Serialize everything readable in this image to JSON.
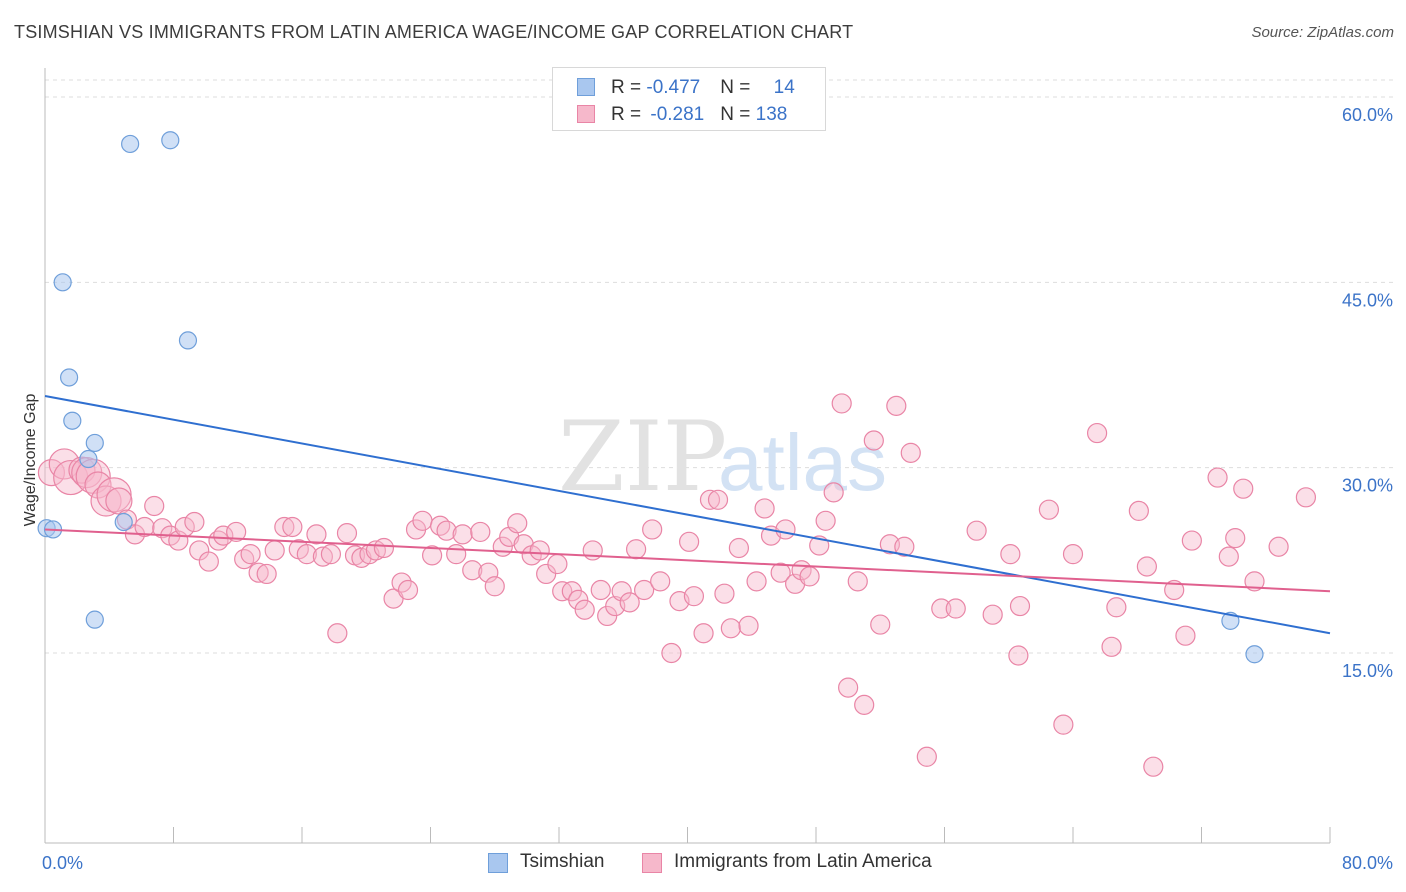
{
  "title": "TSIMSHIAN VS IMMIGRANTS FROM LATIN AMERICA WAGE/INCOME GAP CORRELATION CHART",
  "source": "Source: ZipAtlas.com",
  "legend_top": {
    "rows": [
      {
        "r_label": "R = ",
        "r_value": "-0.477",
        "n_label": "N = ",
        "n_value": "14"
      },
      {
        "r_label": "R = ",
        "r_value": "-0.281",
        "n_label": "N = ",
        "n_value": "138"
      }
    ]
  },
  "legend_bottom": {
    "series1": "Tsimshian",
    "series2": "Immigrants from Latin America"
  },
  "colors": {
    "blue_fill": "#a9c7ef",
    "blue_stroke": "#6f9fda",
    "blue_line": "#2f6fd0",
    "pink_fill": "#f6b8cb",
    "pink_stroke": "#e985a6",
    "pink_line": "#e0608e",
    "axis_text": "#3b73c8",
    "grid": "#dddddd"
  },
  "chart_data": {
    "type": "scatter",
    "title": "TSIMSHIAN VS IMMIGRANTS FROM LATIN AMERICA WAGE/INCOME GAP CORRELATION CHART",
    "xlabel": "",
    "ylabel": "Wage/Income Gap",
    "xlim": [
      0,
      80
    ],
    "ylim": [
      0,
      60
    ],
    "x_tick_labels": [
      "0.0%",
      "80.0%"
    ],
    "y_tick_labels": [
      "15.0%",
      "30.0%",
      "45.0%",
      "60.0%"
    ],
    "y_ticks": [
      15,
      30,
      45,
      60
    ],
    "grid": true,
    "legend_position": "top-center",
    "watermark": {
      "zip": "ZIP",
      "atlas": "atlas"
    },
    "series": [
      {
        "name": "Tsimshian",
        "color": "#a9c7ef",
        "R": -0.477,
        "N": 14,
        "trend": {
          "x": [
            0,
            80
          ],
          "y": [
            35.8,
            16.6
          ]
        },
        "points": [
          [
            0.1,
            25.1
          ],
          [
            0.5,
            25.0
          ],
          [
            1.1,
            45.0
          ],
          [
            1.5,
            37.3
          ],
          [
            1.7,
            33.8
          ],
          [
            2.7,
            30.7
          ],
          [
            3.1,
            32.0
          ],
          [
            3.1,
            17.7
          ],
          [
            4.9,
            25.6
          ],
          [
            5.3,
            56.2
          ],
          [
            7.8,
            56.5
          ],
          [
            8.9,
            40.3
          ],
          [
            73.8,
            17.6
          ],
          [
            75.3,
            14.9
          ]
        ]
      },
      {
        "name": "Immigrants from Latin America",
        "color": "#f6b8cb",
        "R": -0.281,
        "N": 138,
        "trend": {
          "x": [
            0,
            80
          ],
          "y": [
            25.0,
            20.0
          ]
        },
        "points": [
          [
            0.4,
            29.6
          ],
          [
            1.2,
            30.3
          ],
          [
            1.6,
            29.2
          ],
          [
            2.3,
            29.8
          ],
          [
            2.6,
            29.6
          ],
          [
            3.0,
            29.3
          ],
          [
            3.3,
            28.6
          ],
          [
            3.8,
            27.3
          ],
          [
            4.3,
            27.8
          ],
          [
            4.6,
            27.3
          ],
          [
            5.1,
            25.8
          ],
          [
            5.6,
            24.6
          ],
          [
            6.2,
            25.2
          ],
          [
            6.8,
            26.9
          ],
          [
            7.3,
            25.1
          ],
          [
            7.8,
            24.5
          ],
          [
            8.3,
            24.1
          ],
          [
            8.7,
            25.2
          ],
          [
            9.3,
            25.6
          ],
          [
            9.6,
            23.3
          ],
          [
            10.2,
            22.4
          ],
          [
            10.8,
            24.1
          ],
          [
            11.1,
            24.5
          ],
          [
            11.9,
            24.8
          ],
          [
            12.4,
            22.6
          ],
          [
            12.8,
            23.0
          ],
          [
            13.3,
            21.5
          ],
          [
            13.8,
            21.4
          ],
          [
            14.3,
            23.3
          ],
          [
            14.9,
            25.2
          ],
          [
            15.4,
            25.2
          ],
          [
            15.8,
            23.4
          ],
          [
            16.3,
            23.0
          ],
          [
            16.9,
            24.6
          ],
          [
            17.3,
            22.8
          ],
          [
            17.8,
            23.0
          ],
          [
            18.2,
            16.6
          ],
          [
            18.8,
            24.7
          ],
          [
            19.3,
            22.9
          ],
          [
            19.7,
            22.7
          ],
          [
            20.2,
            23.0
          ],
          [
            20.6,
            23.3
          ],
          [
            21.1,
            23.5
          ],
          [
            21.7,
            19.4
          ],
          [
            22.2,
            20.7
          ],
          [
            22.6,
            20.1
          ],
          [
            23.1,
            25.0
          ],
          [
            23.5,
            25.7
          ],
          [
            24.1,
            22.9
          ],
          [
            24.6,
            25.3
          ],
          [
            25.0,
            24.9
          ],
          [
            25.6,
            23.0
          ],
          [
            26.0,
            24.6
          ],
          [
            26.6,
            21.7
          ],
          [
            27.1,
            24.8
          ],
          [
            27.6,
            21.5
          ],
          [
            28.0,
            20.4
          ],
          [
            28.5,
            23.6
          ],
          [
            28.9,
            24.4
          ],
          [
            29.4,
            25.5
          ],
          [
            29.8,
            23.8
          ],
          [
            30.3,
            22.9
          ],
          [
            30.8,
            23.3
          ],
          [
            31.2,
            21.4
          ],
          [
            31.9,
            22.2
          ],
          [
            32.2,
            20.0
          ],
          [
            32.8,
            20.0
          ],
          [
            33.2,
            19.3
          ],
          [
            33.6,
            18.5
          ],
          [
            34.1,
            23.3
          ],
          [
            34.6,
            20.1
          ],
          [
            35.0,
            18.0
          ],
          [
            35.5,
            18.8
          ],
          [
            35.9,
            20.0
          ],
          [
            36.4,
            19.1
          ],
          [
            36.8,
            23.4
          ],
          [
            37.3,
            20.1
          ],
          [
            37.8,
            25.0
          ],
          [
            38.3,
            20.8
          ],
          [
            39.0,
            15.0
          ],
          [
            39.5,
            19.2
          ],
          [
            40.1,
            24.0
          ],
          [
            40.4,
            19.6
          ],
          [
            41.0,
            16.6
          ],
          [
            41.4,
            27.4
          ],
          [
            41.9,
            27.4
          ],
          [
            42.3,
            19.8
          ],
          [
            42.7,
            17.0
          ],
          [
            43.2,
            23.5
          ],
          [
            43.8,
            17.2
          ],
          [
            44.3,
            20.8
          ],
          [
            44.8,
            26.7
          ],
          [
            45.2,
            24.5
          ],
          [
            45.8,
            21.5
          ],
          [
            46.1,
            25.0
          ],
          [
            46.7,
            20.6
          ],
          [
            47.1,
            21.7
          ],
          [
            47.6,
            21.2
          ],
          [
            48.2,
            23.7
          ],
          [
            48.6,
            25.7
          ],
          [
            49.1,
            28.0
          ],
          [
            49.6,
            35.2
          ],
          [
            50.0,
            12.2
          ],
          [
            50.6,
            20.8
          ],
          [
            51.0,
            10.8
          ],
          [
            51.6,
            32.2
          ],
          [
            52.0,
            17.3
          ],
          [
            52.6,
            23.8
          ],
          [
            53.0,
            35.0
          ],
          [
            53.5,
            23.6
          ],
          [
            53.9,
            31.2
          ],
          [
            54.9,
            6.6
          ],
          [
            55.8,
            18.6
          ],
          [
            56.7,
            18.6
          ],
          [
            58.0,
            24.9
          ],
          [
            59.0,
            18.1
          ],
          [
            60.1,
            23.0
          ],
          [
            60.6,
            14.8
          ],
          [
            60.7,
            18.8
          ],
          [
            62.5,
            26.6
          ],
          [
            63.4,
            9.2
          ],
          [
            64.0,
            23.0
          ],
          [
            65.5,
            32.8
          ],
          [
            66.4,
            15.5
          ],
          [
            66.7,
            18.7
          ],
          [
            68.1,
            26.5
          ],
          [
            68.6,
            22.0
          ],
          [
            69.0,
            5.8
          ],
          [
            70.3,
            20.1
          ],
          [
            71.0,
            16.4
          ],
          [
            71.4,
            24.1
          ],
          [
            73.0,
            29.2
          ],
          [
            73.7,
            22.8
          ],
          [
            74.1,
            24.3
          ],
          [
            74.6,
            28.3
          ],
          [
            75.3,
            20.8
          ],
          [
            76.8,
            23.6
          ],
          [
            78.5,
            27.6
          ]
        ]
      }
    ]
  }
}
